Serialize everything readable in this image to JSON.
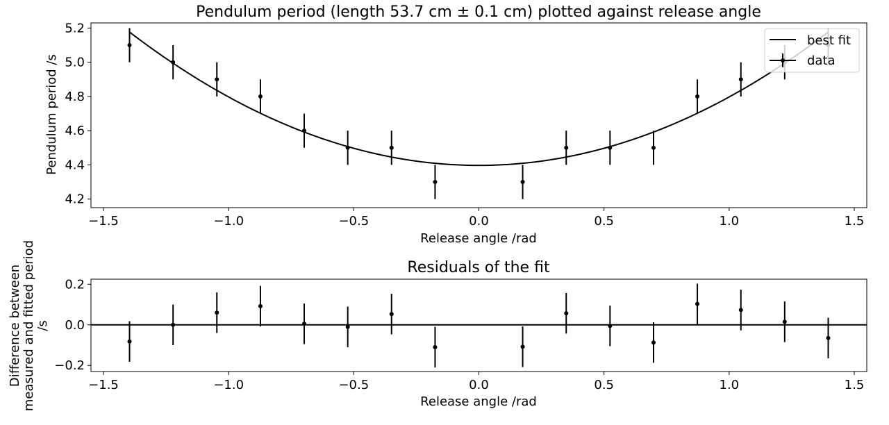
{
  "chart_data": [
    {
      "type": "scatter",
      "title": "Pendulum period (length 53.7 cm ± 0.1 cm) plotted against release angle",
      "xlabel": "Release angle /rad",
      "ylabel": "Pendulum period /s",
      "xlim": [
        -1.55,
        1.55
      ],
      "ylim": [
        4.15,
        5.23
      ],
      "xticks": [
        -1.5,
        -1.0,
        -0.5,
        0.0,
        0.5,
        1.0,
        1.5
      ],
      "xtick_labels": [
        "−1.5",
        "−1.0",
        "−0.5",
        "0.0",
        "0.5",
        "1.0",
        "1.5"
      ],
      "yticks": [
        4.2,
        4.4,
        4.6,
        4.8,
        5.0,
        5.2
      ],
      "ytick_labels": [
        "4.2",
        "4.4",
        "4.6",
        "4.8",
        "5.0",
        "5.2"
      ],
      "grid": false,
      "legend": {
        "placement": "top-right",
        "entries": [
          "best fit",
          "data"
        ]
      },
      "series": [
        {
          "name": "data",
          "x": [
            -1.396,
            -1.222,
            -1.047,
            -0.873,
            -0.698,
            -0.524,
            -0.349,
            -0.175,
            0.175,
            0.349,
            0.524,
            0.698,
            0.873,
            1.047,
            1.222,
            1.396
          ],
          "y": [
            5.1,
            5.0,
            4.9,
            4.8,
            4.6,
            4.5,
            4.5,
            4.3,
            4.3,
            4.5,
            4.5,
            4.5,
            4.8,
            4.9,
            5.0,
            5.1
          ],
          "yerr": 0.1
        },
        {
          "name": "best fit",
          "model": "quadratic",
          "coefficients": {
            "a": 0.4,
            "b": 0.0,
            "c": 4.397
          },
          "x_range": [
            -1.396,
            1.396
          ]
        }
      ]
    },
    {
      "type": "scatter",
      "title": "Residuals of the fit",
      "xlabel": "Release angle /rad",
      "ylabel_lines": [
        "Difference between",
        "measured and fitted period",
        "/s"
      ],
      "xlim": [
        -1.55,
        1.55
      ],
      "ylim": [
        -0.23,
        0.225
      ],
      "xticks": [
        -1.5,
        -1.0,
        -0.5,
        0.0,
        0.5,
        1.0,
        1.5
      ],
      "xtick_labels": [
        "−1.5",
        "−1.0",
        "−0.5",
        "0.0",
        "0.5",
        "1.0",
        "1.5"
      ],
      "yticks": [
        -0.2,
        0.0,
        0.2
      ],
      "ytick_labels": [
        "−0.2",
        "0.0",
        "0.2"
      ],
      "grid": false,
      "reference_line_y": 0.0,
      "series": [
        {
          "x": [
            -1.396,
            -1.222,
            -1.047,
            -0.873,
            -0.698,
            -0.524,
            -0.349,
            -0.175,
            0.175,
            0.349,
            0.524,
            0.698,
            0.873,
            1.047,
            1.222,
            1.396
          ],
          "y": [
            -0.082,
            0.0,
            0.06,
            0.092,
            0.005,
            -0.01,
            0.053,
            -0.11,
            -0.108,
            0.057,
            -0.005,
            -0.087,
            0.103,
            0.073,
            0.015,
            -0.065
          ],
          "yerr": 0.1
        }
      ]
    }
  ]
}
